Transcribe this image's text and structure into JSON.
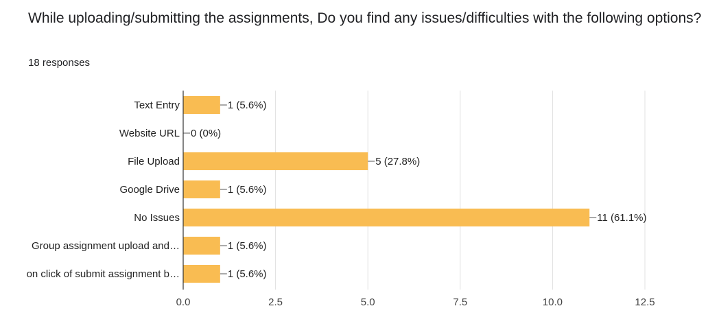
{
  "header": {
    "title": "While uploading/submitting the assignments, Do you find any issues/difficulties with the following options?",
    "responses": "18 responses"
  },
  "colors": {
    "bar": "#F9BC52",
    "grid": "#E0E0E0",
    "axis": "#333333",
    "leader": "#555555"
  },
  "chart_data": {
    "type": "bar",
    "orientation": "horizontal",
    "categories": [
      "Text Entry",
      "Website URL",
      "File Upload",
      "Google Drive",
      "No Issues",
      "Group assignment upload and…",
      "on click of submit assignment b…"
    ],
    "values": [
      1,
      0,
      5,
      1,
      11,
      1,
      1
    ],
    "data_labels": [
      "1 (5.6%)",
      "0 (0%)",
      "5 (27.8%)",
      "1 (5.6%)",
      "11 (61.1%)",
      "1 (5.6%)",
      "1 (5.6%)"
    ],
    "xticks": [
      0,
      2.5,
      5,
      7.5,
      10,
      12.5
    ],
    "xtick_labels": [
      "0.0",
      "2.5",
      "5.0",
      "7.5",
      "10.0",
      "12.5"
    ],
    "xlim": [
      0,
      12.5
    ],
    "grid": true
  }
}
